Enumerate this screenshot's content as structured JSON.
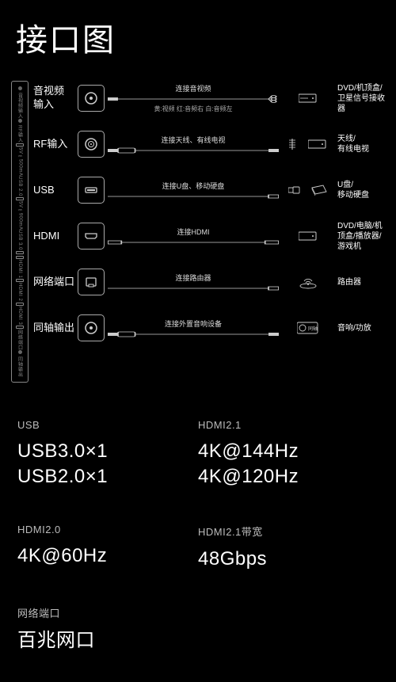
{
  "title": "接口图",
  "colors": {
    "bg": "#000000",
    "fg": "#ffffff",
    "muted": "#bbbbbb",
    "line": "#aaaaaa"
  },
  "sidestrip": {
    "labels": [
      "音视频输入",
      "RF输入",
      "5V⎓500mA",
      "USB 2.0",
      "5V⎓900mA",
      "USB 3.0"
    ],
    "slots": [
      "HDMI 1",
      "HDMI 2",
      "HDMI 3",
      "网络端口",
      "同轴输出"
    ]
  },
  "ports": [
    {
      "name": "av",
      "label": "音视频\n输入",
      "cable_label": "连接音视频",
      "cable_sublabel": "黄:视频 红:音频右 白:音频左",
      "device_label": "DVD/机顶盒/卫星信号接收器",
      "socket_svg": "circle",
      "device_svg": "stb-triple"
    },
    {
      "name": "rf",
      "label": "RF输入",
      "cable_label": "连接天线、有线电视",
      "cable_sublabel": "",
      "device_label": "天线/\n有线电视",
      "socket_svg": "coax",
      "device_svg": "antenna"
    },
    {
      "name": "usb",
      "label": "USB",
      "cable_label": "连接U盘、移动硬盘",
      "cable_sublabel": "",
      "device_label": "U盘/\n移动硬盘",
      "socket_svg": "usb",
      "device_svg": "usb-drive"
    },
    {
      "name": "hdmi",
      "label": "HDMI",
      "cable_label": "连接HDMI",
      "cable_sublabel": "",
      "device_label": "DVD/电脑/机顶盒/播放器/游戏机",
      "socket_svg": "hdmi",
      "device_svg": "stb"
    },
    {
      "name": "lan",
      "label": "网络端口",
      "cable_label": "连接路由器",
      "cable_sublabel": "",
      "device_label": "路由器",
      "socket_svg": "rj45",
      "device_svg": "router"
    },
    {
      "name": "spdif",
      "label": "同轴输出",
      "cable_label": "连接外置音响设备",
      "cable_sublabel": "",
      "device_label": "音响/功放",
      "socket_svg": "circle",
      "device_svg": "speaker"
    }
  ],
  "specs": [
    [
      {
        "head": "USB",
        "vals": [
          "USB3.0×1",
          "USB2.0×1"
        ]
      },
      {
        "head": "HDMI2.1",
        "vals": [
          "4K@144Hz",
          "4K@120Hz"
        ]
      }
    ],
    [
      {
        "head": "HDMI2.0",
        "vals": [
          "4K@60Hz"
        ]
      },
      {
        "head": "HDMI2.1带宽",
        "vals": [
          "48Gbps"
        ]
      }
    ],
    [
      {
        "head": "网络端口",
        "vals": [
          "百兆网口"
        ]
      }
    ]
  ]
}
